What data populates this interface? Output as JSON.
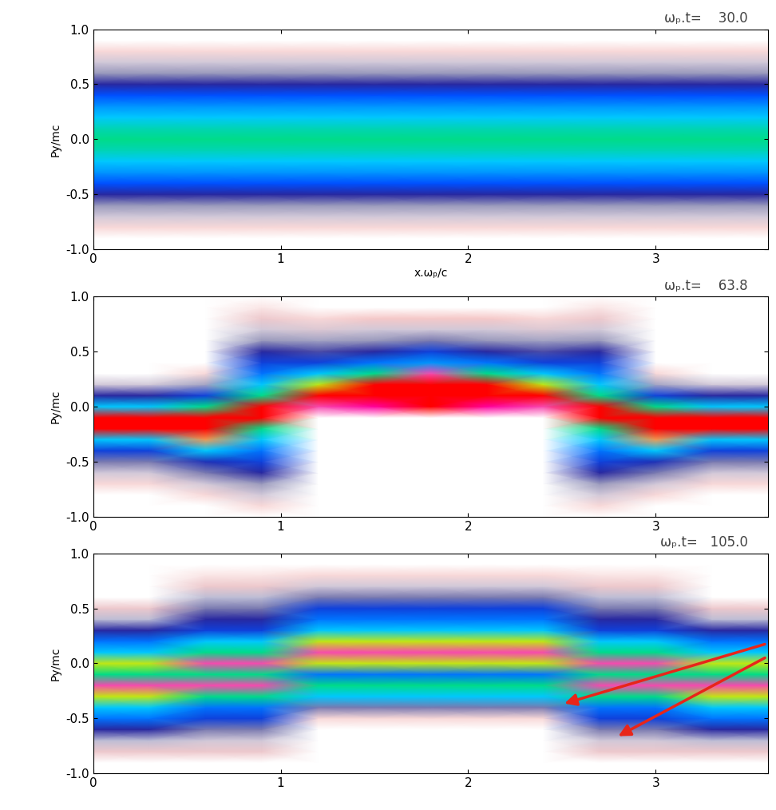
{
  "chart_data": [
    {
      "type": "heatmap",
      "title": "ωₚ.t=    30.0",
      "x_label": "x.ωₚ/c",
      "y_label": "Py/mc",
      "xlim": [
        0,
        3.6
      ],
      "ylim": [
        -1.0,
        1.0
      ],
      "xticks": [
        0,
        1,
        2,
        3
      ],
      "yticks": [
        {
          "value": -1.0,
          "label": "-1.0"
        },
        {
          "value": -0.5,
          "label": "-0.5"
        },
        {
          "value": 0.0,
          "label": "0.0"
        },
        {
          "value": 0.5,
          "label": "0.5"
        },
        {
          "value": 1.0,
          "label": "1.0"
        }
      ],
      "color_range": [
        0,
        6
      ],
      "x": [
        0,
        0.3,
        0.6,
        0.9,
        1.2,
        1.5,
        1.8,
        2.1,
        2.4,
        2.7,
        3.0,
        3.3,
        3.6
      ],
      "y": [
        -1.0,
        -0.9,
        -0.8,
        -0.7,
        -0.6,
        -0.5,
        -0.4,
        -0.3,
        -0.2,
        -0.1,
        0.0,
        0.1,
        0.2,
        0.3,
        0.4,
        0.5,
        0.6,
        0.7,
        0.8,
        0.9,
        1.0
      ],
      "cells": [
        [
          0,
          0,
          0,
          0,
          0,
          0,
          0,
          0,
          0,
          0,
          0,
          0,
          0
        ],
        [
          0,
          0,
          0,
          0,
          0,
          0,
          0,
          0,
          0,
          0,
          0,
          0,
          0
        ],
        [
          0.3,
          0.3,
          0.3,
          0.3,
          0.3,
          0.3,
          0.3,
          0.3,
          0.3,
          0.3,
          0.3,
          0.3,
          0.3
        ],
        [
          0.8,
          0.8,
          0.8,
          0.8,
          0.8,
          0.8,
          0.8,
          0.8,
          0.8,
          0.8,
          0.8,
          0.8,
          0.8
        ],
        [
          1.3,
          1.3,
          1.3,
          1.3,
          1.3,
          1.3,
          1.3,
          1.3,
          1.3,
          1.3,
          1.3,
          1.3,
          1.3
        ],
        [
          2,
          2,
          2,
          2,
          2,
          2,
          2,
          2,
          2,
          2,
          2,
          2,
          2
        ],
        [
          2.8,
          2.8,
          2.8,
          2.8,
          2.8,
          2.8,
          2.8,
          2.8,
          2.8,
          2.8,
          2.8,
          2.8,
          2.8
        ],
        [
          3.2,
          3.2,
          3.2,
          3.2,
          3.2,
          3.2,
          3.2,
          3.2,
          3.2,
          3.2,
          3.2,
          3.2,
          3.2
        ],
        [
          3.5,
          3.5,
          3.5,
          3.5,
          3.5,
          3.5,
          3.5,
          3.5,
          3.5,
          3.5,
          3.5,
          3.5,
          3.5
        ],
        [
          3.8,
          3.8,
          3.8,
          3.8,
          3.8,
          3.8,
          3.8,
          3.8,
          3.8,
          3.8,
          3.8,
          3.8,
          3.8
        ],
        [
          4,
          4,
          4,
          4,
          4,
          4,
          4,
          4,
          4,
          4,
          4,
          4,
          4
        ],
        [
          3.8,
          3.8,
          3.8,
          3.8,
          3.8,
          3.8,
          3.8,
          3.8,
          3.8,
          3.8,
          3.8,
          3.8,
          3.8
        ],
        [
          3.5,
          3.5,
          3.5,
          3.5,
          3.5,
          3.5,
          3.5,
          3.5,
          3.5,
          3.5,
          3.5,
          3.5,
          3.5
        ],
        [
          3.2,
          3.2,
          3.2,
          3.2,
          3.2,
          3.2,
          3.2,
          3.2,
          3.2,
          3.2,
          3.2,
          3.2,
          3.2
        ],
        [
          2.8,
          2.8,
          2.8,
          2.8,
          2.8,
          2.8,
          2.8,
          2.8,
          2.8,
          2.8,
          2.8,
          2.8,
          2.8
        ],
        [
          2,
          2,
          2,
          2,
          2,
          2,
          2,
          2,
          2,
          2,
          2,
          2,
          2
        ],
        [
          1.3,
          1.3,
          1.3,
          1.3,
          1.3,
          1.3,
          1.3,
          1.3,
          1.3,
          1.3,
          1.3,
          1.3,
          1.3
        ],
        [
          0.8,
          0.8,
          0.8,
          0.8,
          0.8,
          0.8,
          0.8,
          0.8,
          0.8,
          0.8,
          0.8,
          0.8,
          0.8
        ],
        [
          0.3,
          0.3,
          0.3,
          0.3,
          0.3,
          0.3,
          0.3,
          0.3,
          0.3,
          0.3,
          0.3,
          0.3,
          0.3
        ],
        [
          0,
          0,
          0,
          0,
          0,
          0,
          0,
          0,
          0,
          0,
          0,
          0,
          0
        ],
        [
          0,
          0,
          0,
          0,
          0,
          0,
          0,
          0,
          0,
          0,
          0,
          0,
          0
        ]
      ]
    },
    {
      "type": "heatmap",
      "title": "ωₚ.t=    63.8",
      "y_label": "Py/mc",
      "xlim": [
        0,
        3.6
      ],
      "ylim": [
        -1.0,
        1.0
      ],
      "xticks": [
        0,
        1,
        2,
        3
      ],
      "yticks": [
        {
          "value": -1.0,
          "label": "-1.0"
        },
        {
          "value": -0.5,
          "label": "-0.5"
        },
        {
          "value": 0.0,
          "label": "0.0"
        },
        {
          "value": 0.5,
          "label": "0.5"
        },
        {
          "value": 1.0,
          "label": "1.0"
        }
      ],
      "color_range": [
        0,
        6
      ],
      "x": [
        0,
        0.3,
        0.6,
        0.9,
        1.2,
        1.5,
        1.8,
        2.1,
        2.4,
        2.7,
        3.0,
        3.3,
        3.6
      ],
      "y": [
        -1.0,
        -0.9,
        -0.8,
        -0.7,
        -0.6,
        -0.5,
        -0.4,
        -0.3,
        -0.2,
        -0.1,
        0.0,
        0.1,
        0.2,
        0.3,
        0.4,
        0.5,
        0.6,
        0.7,
        0.8,
        0.9,
        1.0
      ],
      "cells": [
        [
          0,
          0,
          0,
          0,
          0,
          0,
          0,
          0,
          0,
          0,
          0,
          0,
          0
        ],
        [
          0,
          0,
          0,
          0.3,
          0,
          0,
          0,
          0,
          0,
          0.3,
          0,
          0,
          0
        ],
        [
          0,
          0,
          0.3,
          0.8,
          0,
          0,
          0,
          0,
          0,
          0.8,
          0.3,
          0,
          0
        ],
        [
          0.3,
          0.3,
          0.8,
          1.3,
          0,
          0,
          0,
          0,
          0,
          1.3,
          0.8,
          0.3,
          0.3
        ],
        [
          0.8,
          0.8,
          1.5,
          2,
          0,
          0,
          0,
          0,
          0,
          2,
          1.5,
          0.8,
          0.8
        ],
        [
          1.5,
          1.5,
          2.2,
          2.5,
          0,
          0,
          0,
          0,
          0,
          2.5,
          2.2,
          1.5,
          1.5
        ],
        [
          2.5,
          2.5,
          3.5,
          3,
          0,
          0,
          0,
          0,
          0,
          3,
          3.5,
          2.5,
          2.5
        ],
        [
          3.5,
          3.5,
          4.8,
          3.5,
          0,
          0,
          0,
          0,
          0,
          3.5,
          4.8,
          3.5,
          3.5
        ],
        [
          6,
          6,
          6,
          4,
          0,
          0,
          0,
          0,
          0,
          4,
          6,
          6,
          6
        ],
        [
          6,
          6,
          6,
          6,
          0,
          0,
          0,
          0,
          0,
          6,
          6,
          6,
          6
        ],
        [
          3.5,
          3.5,
          4,
          6,
          5,
          5.5,
          6,
          5.5,
          5,
          6,
          4,
          3.5,
          3.5
        ],
        [
          2,
          2,
          2.5,
          4,
          6,
          6,
          6,
          6,
          6,
          4,
          2.5,
          2,
          2
        ],
        [
          0.8,
          0.8,
          1.2,
          3.5,
          4.5,
          6,
          6,
          6,
          4.5,
          3.5,
          1.2,
          0.8,
          0.8
        ],
        [
          0,
          0,
          0.3,
          3,
          3.5,
          4,
          5,
          4,
          3.5,
          3,
          0.3,
          0,
          0
        ],
        [
          0,
          0,
          0,
          2.5,
          2.5,
          3,
          3.2,
          3,
          2.5,
          2.5,
          0,
          0,
          0
        ],
        [
          0,
          0,
          0,
          2,
          1.8,
          2,
          2.5,
          2,
          1.8,
          2,
          0,
          0,
          0
        ],
        [
          0,
          0,
          0,
          1.3,
          1.2,
          1.3,
          1.5,
          1.3,
          1.2,
          1.3,
          0,
          0,
          0
        ],
        [
          0,
          0,
          0,
          0.8,
          0.7,
          0.8,
          0.8,
          0.8,
          0.7,
          0.8,
          0,
          0,
          0
        ],
        [
          0,
          0,
          0,
          0.5,
          0.3,
          0.4,
          0.4,
          0.4,
          0.3,
          0.5,
          0,
          0,
          0
        ],
        [
          0,
          0,
          0,
          0.2,
          0,
          0,
          0,
          0,
          0,
          0.2,
          0,
          0,
          0
        ],
        [
          0,
          0,
          0,
          0,
          0,
          0,
          0,
          0,
          0,
          0,
          0,
          0,
          0
        ]
      ]
    },
    {
      "type": "heatmap",
      "title": "ωₚ.t=   105.0",
      "y_label": "Py/mc",
      "xlim": [
        0,
        3.6
      ],
      "ylim": [
        -1.0,
        1.0
      ],
      "xticks": [
        0,
        1,
        2,
        3
      ],
      "yticks": [
        {
          "value": -1.0,
          "label": "-1.0"
        },
        {
          "value": -0.5,
          "label": "-0.5"
        },
        {
          "value": 0.0,
          "label": "0.0"
        },
        {
          "value": 0.5,
          "label": "0.5"
        },
        {
          "value": 1.0,
          "label": "1.0"
        }
      ],
      "color_range": [
        0,
        6
      ],
      "x": [
        0,
        0.3,
        0.6,
        0.9,
        1.2,
        1.5,
        1.8,
        2.1,
        2.4,
        2.7,
        3.0,
        3.3,
        3.6
      ],
      "y": [
        -1.0,
        -0.9,
        -0.8,
        -0.7,
        -0.6,
        -0.5,
        -0.4,
        -0.3,
        -0.2,
        -0.1,
        0.0,
        0.1,
        0.2,
        0.3,
        0.4,
        0.5,
        0.6,
        0.7,
        0.8,
        0.9,
        1.0
      ],
      "cells": [
        [
          0,
          0,
          0,
          0,
          0,
          0,
          0,
          0,
          0,
          0,
          0,
          0,
          0
        ],
        [
          0,
          0,
          0,
          0,
          0,
          0,
          0,
          0,
          0,
          0,
          0,
          0,
          0
        ],
        [
          0.5,
          0.5,
          0.5,
          0.5,
          0,
          0,
          0,
          0,
          0,
          0.5,
          0.5,
          0.5,
          0.5
        ],
        [
          1,
          1,
          0.8,
          0.8,
          0,
          0,
          0,
          0,
          0,
          0.8,
          0.8,
          1,
          1
        ],
        [
          2,
          2,
          1.5,
          1.5,
          0,
          0,
          0,
          0,
          0,
          1.5,
          1.5,
          2,
          2
        ],
        [
          3,
          3,
          2.5,
          2.5,
          0.3,
          0.3,
          0.3,
          0.3,
          0.3,
          2.5,
          2.5,
          3,
          3
        ],
        [
          3.5,
          3.5,
          3,
          3,
          1.5,
          1.5,
          1.5,
          1.5,
          1.5,
          3,
          3,
          3.5,
          3.5
        ],
        [
          4.5,
          4.5,
          4,
          4,
          3.5,
          3.5,
          3.5,
          3.5,
          3.5,
          4,
          4,
          4.5,
          4.5
        ],
        [
          5,
          5,
          5,
          5,
          4,
          4,
          4,
          4,
          4,
          5,
          5,
          5,
          5
        ],
        [
          4,
          4,
          4,
          4,
          3,
          3,
          3,
          3,
          3,
          4,
          4,
          4,
          4
        ],
        [
          4.5,
          4.5,
          5,
          5,
          4.5,
          4.5,
          4.5,
          4.5,
          4.5,
          5,
          5,
          4.5,
          4.5
        ],
        [
          3.5,
          3.5,
          4,
          4,
          5,
          5,
          5,
          5,
          5,
          4,
          4,
          3.5,
          3.5
        ],
        [
          3,
          3,
          3.5,
          3.5,
          4.5,
          4.5,
          4.5,
          4.5,
          4.5,
          3.5,
          3.5,
          3,
          3
        ],
        [
          2,
          2,
          2.5,
          2.5,
          3.5,
          3.5,
          3.5,
          3.5,
          3.5,
          2.5,
          2.5,
          2,
          2
        ],
        [
          1,
          1,
          2,
          2,
          3,
          3,
          3,
          3,
          3,
          2,
          2,
          1,
          1
        ],
        [
          0.5,
          0.5,
          1.5,
          1.5,
          2.5,
          2.5,
          2.5,
          2.5,
          2.5,
          1.5,
          1.5,
          0.5,
          0.5
        ],
        [
          0,
          0,
          1,
          1,
          1.5,
          1.5,
          1.5,
          1.5,
          1.5,
          1,
          1,
          0,
          0
        ],
        [
          0,
          0,
          0.5,
          0.5,
          0.8,
          0.8,
          0.8,
          0.8,
          0.8,
          0.5,
          0.5,
          0,
          0
        ],
        [
          0,
          0,
          0.2,
          0.2,
          0.3,
          0.3,
          0.3,
          0.3,
          0.3,
          0.2,
          0.2,
          0,
          0
        ],
        [
          0,
          0,
          0,
          0,
          0,
          0,
          0,
          0,
          0,
          0,
          0,
          0,
          0
        ],
        [
          0,
          0,
          0,
          0,
          0,
          0,
          0,
          0,
          0,
          0,
          0,
          0,
          0
        ]
      ]
    }
  ]
}
